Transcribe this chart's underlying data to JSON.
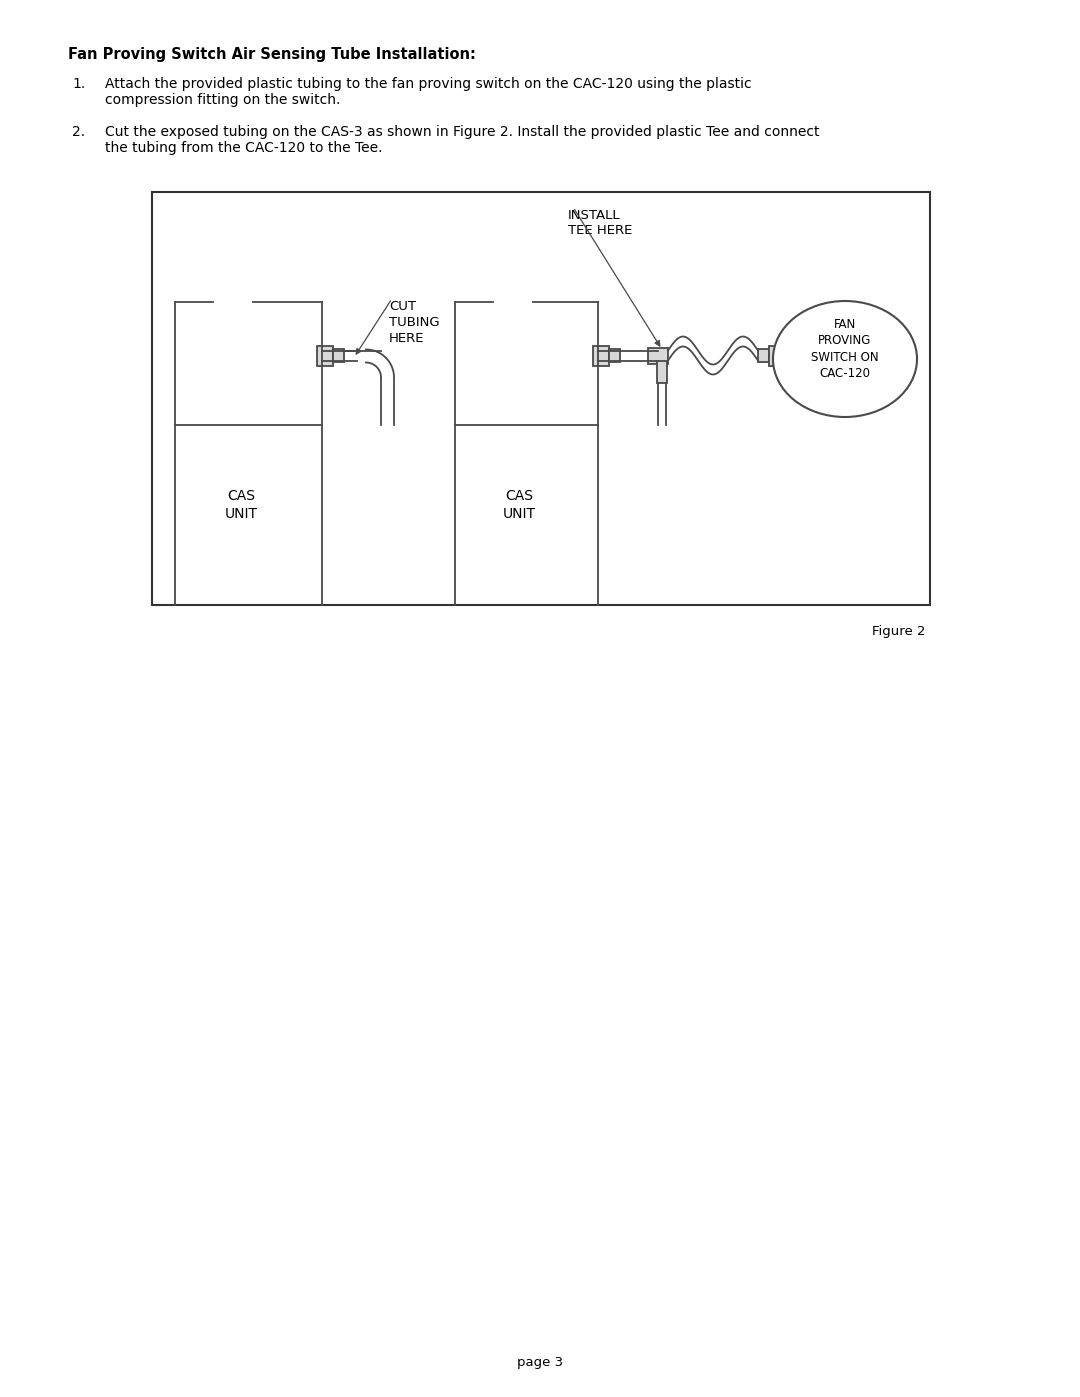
{
  "title": "Fan Proving Switch Air Sensing Tube Installation:",
  "item1_num": "1.",
  "item1_text": "Attach the provided plastic tubing to the fan proving switch on the CAC-120 using the plastic\ncompression fitting on the switch.",
  "item2_num": "2.",
  "item2_text": "Cut the exposed tubing on the CAS-3 as shown in Figure 2. Install the provided plastic Tee and connect\nthe tubing from the CAC-120 to the Tee.",
  "figure_caption": "Figure 2",
  "page_label": "page 3",
  "bg_color": "#ffffff",
  "text_color": "#000000",
  "line_color": "#4a4a4a",
  "diagram_bg": "#ffffff",
  "diagram_border": "#333333",
  "label_cut": "CUT\nTUBING\nHERE",
  "label_install": "INSTALL\nTEE HERE",
  "label_fan": "FAN\nPROVING\nSWITCH ON\nCAC-120",
  "label_cas": "CAS\nUNIT"
}
